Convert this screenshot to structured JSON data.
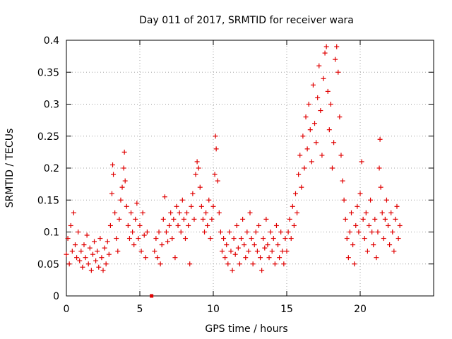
{
  "chart_data": {
    "type": "scatter",
    "title": "Day 011 of 2017, SRMTID for receiver wara",
    "xlabel": "GPS time / hours",
    "ylabel": "SRMTID / TECUs",
    "xlim": [
      0,
      25
    ],
    "ylim": [
      0,
      0.4
    ],
    "x_ticks": [
      "0",
      "5",
      "10",
      "15",
      "20"
    ],
    "y_ticks": [
      "0",
      "0.05",
      "0.1",
      "0.15",
      "0.2",
      "0.25",
      "0.3",
      "0.35",
      "0.4"
    ],
    "grid": true,
    "marker": "plus",
    "color": "#e00000",
    "series": [
      {
        "name": "SRMTID",
        "points": [
          [
            0.0,
            0.065
          ],
          [
            0.1,
            0.09
          ],
          [
            0.2,
            0.05
          ],
          [
            0.3,
            0.11
          ],
          [
            0.4,
            0.07
          ],
          [
            0.5,
            0.13
          ],
          [
            0.6,
            0.08
          ],
          [
            0.7,
            0.06
          ],
          [
            0.8,
            0.1
          ],
          [
            0.9,
            0.055
          ],
          [
            1.0,
            0.07
          ],
          [
            1.1,
            0.045
          ],
          [
            1.2,
            0.08
          ],
          [
            1.3,
            0.06
          ],
          [
            1.4,
            0.095
          ],
          [
            1.5,
            0.05
          ],
          [
            1.6,
            0.075
          ],
          [
            1.7,
            0.04
          ],
          [
            1.8,
            0.065
          ],
          [
            1.9,
            0.085
          ],
          [
            2.0,
            0.055
          ],
          [
            2.1,
            0.07
          ],
          [
            2.2,
            0.045
          ],
          [
            2.3,
            0.09
          ],
          [
            2.4,
            0.06
          ],
          [
            2.5,
            0.04
          ],
          [
            2.6,
            0.075
          ],
          [
            2.7,
            0.05
          ],
          [
            2.8,
            0.085
          ],
          [
            2.9,
            0.065
          ],
          [
            3.0,
            0.11
          ],
          [
            3.1,
            0.16
          ],
          [
            3.15,
            0.205
          ],
          [
            3.2,
            0.19
          ],
          [
            3.3,
            0.13
          ],
          [
            3.4,
            0.09
          ],
          [
            3.5,
            0.07
          ],
          [
            3.6,
            0.12
          ],
          [
            3.7,
            0.15
          ],
          [
            3.8,
            0.17
          ],
          [
            3.9,
            0.2
          ],
          [
            3.95,
            0.225
          ],
          [
            4.0,
            0.18
          ],
          [
            4.1,
            0.14
          ],
          [
            4.2,
            0.11
          ],
          [
            4.3,
            0.09
          ],
          [
            4.4,
            0.13
          ],
          [
            4.5,
            0.1
          ],
          [
            4.6,
            0.08
          ],
          [
            4.7,
            0.12
          ],
          [
            4.8,
            0.145
          ],
          [
            4.9,
            0.09
          ],
          [
            5.0,
            0.11
          ],
          [
            5.1,
            0.07
          ],
          [
            5.2,
            0.13
          ],
          [
            5.3,
            0.095
          ],
          [
            5.4,
            0.06
          ],
          [
            5.5,
            0.1
          ],
          [
            5.8,
            0.0
          ],
          [
            6.0,
            0.07
          ],
          [
            6.1,
            0.09
          ],
          [
            6.2,
            0.06
          ],
          [
            6.3,
            0.1
          ],
          [
            6.4,
            0.05
          ],
          [
            6.5,
            0.08
          ],
          [
            6.6,
            0.12
          ],
          [
            6.7,
            0.155
          ],
          [
            6.8,
            0.1
          ],
          [
            6.9,
            0.085
          ],
          [
            7.0,
            0.11
          ],
          [
            7.1,
            0.13
          ],
          [
            7.2,
            0.09
          ],
          [
            7.3,
            0.12
          ],
          [
            7.4,
            0.06
          ],
          [
            7.5,
            0.14
          ],
          [
            7.6,
            0.11
          ],
          [
            7.7,
            0.13
          ],
          [
            7.8,
            0.1
          ],
          [
            7.9,
            0.15
          ],
          [
            8.0,
            0.12
          ],
          [
            8.1,
            0.09
          ],
          [
            8.2,
            0.13
          ],
          [
            8.3,
            0.11
          ],
          [
            8.4,
            0.05
          ],
          [
            8.5,
            0.14
          ],
          [
            8.6,
            0.16
          ],
          [
            8.7,
            0.12
          ],
          [
            8.8,
            0.19
          ],
          [
            8.9,
            0.21
          ],
          [
            9.0,
            0.2
          ],
          [
            9.1,
            0.17
          ],
          [
            9.2,
            0.14
          ],
          [
            9.3,
            0.12
          ],
          [
            9.4,
            0.1
          ],
          [
            9.5,
            0.13
          ],
          [
            9.6,
            0.11
          ],
          [
            9.7,
            0.15
          ],
          [
            9.8,
            0.09
          ],
          [
            9.9,
            0.12
          ],
          [
            10.0,
            0.14
          ],
          [
            10.1,
            0.19
          ],
          [
            10.15,
            0.25
          ],
          [
            10.2,
            0.23
          ],
          [
            10.3,
            0.18
          ],
          [
            10.4,
            0.13
          ],
          [
            10.5,
            0.1
          ],
          [
            10.6,
            0.07
          ],
          [
            10.7,
            0.09
          ],
          [
            10.8,
            0.06
          ],
          [
            10.9,
            0.08
          ],
          [
            11.0,
            0.05
          ],
          [
            11.1,
            0.1
          ],
          [
            11.2,
            0.07
          ],
          [
            11.3,
            0.04
          ],
          [
            11.4,
            0.09
          ],
          [
            11.5,
            0.065
          ],
          [
            11.6,
            0.11
          ],
          [
            11.7,
            0.075
          ],
          [
            11.8,
            0.05
          ],
          [
            11.9,
            0.09
          ],
          [
            12.0,
            0.12
          ],
          [
            12.1,
            0.08
          ],
          [
            12.2,
            0.06
          ],
          [
            12.3,
            0.1
          ],
          [
            12.4,
            0.07
          ],
          [
            12.5,
            0.13
          ],
          [
            12.6,
            0.09
          ],
          [
            12.7,
            0.05
          ],
          [
            12.8,
            0.08
          ],
          [
            12.9,
            0.1
          ],
          [
            13.0,
            0.07
          ],
          [
            13.1,
            0.11
          ],
          [
            13.2,
            0.06
          ],
          [
            13.3,
            0.04
          ],
          [
            13.4,
            0.09
          ],
          [
            13.5,
            0.075
          ],
          [
            13.6,
            0.12
          ],
          [
            13.7,
            0.08
          ],
          [
            13.8,
            0.06
          ],
          [
            13.9,
            0.1
          ],
          [
            14.0,
            0.07
          ],
          [
            14.1,
            0.09
          ],
          [
            14.2,
            0.05
          ],
          [
            14.3,
            0.11
          ],
          [
            14.4,
            0.08
          ],
          [
            14.5,
            0.06
          ],
          [
            14.6,
            0.1
          ],
          [
            14.7,
            0.07
          ],
          [
            14.8,
            0.05
          ],
          [
            14.9,
            0.09
          ],
          [
            15.0,
            0.07
          ],
          [
            15.1,
            0.1
          ],
          [
            15.2,
            0.12
          ],
          [
            15.3,
            0.09
          ],
          [
            15.4,
            0.14
          ],
          [
            15.5,
            0.11
          ],
          [
            15.6,
            0.16
          ],
          [
            15.7,
            0.13
          ],
          [
            15.8,
            0.19
          ],
          [
            15.9,
            0.22
          ],
          [
            16.0,
            0.17
          ],
          [
            16.1,
            0.25
          ],
          [
            16.2,
            0.2
          ],
          [
            16.3,
            0.28
          ],
          [
            16.4,
            0.23
          ],
          [
            16.5,
            0.3
          ],
          [
            16.6,
            0.26
          ],
          [
            16.7,
            0.21
          ],
          [
            16.8,
            0.33
          ],
          [
            16.9,
            0.27
          ],
          [
            17.0,
            0.24
          ],
          [
            17.1,
            0.31
          ],
          [
            17.2,
            0.36
          ],
          [
            17.3,
            0.29
          ],
          [
            17.4,
            0.22
          ],
          [
            17.5,
            0.34
          ],
          [
            17.6,
            0.38
          ],
          [
            17.7,
            0.39
          ],
          [
            17.8,
            0.32
          ],
          [
            17.9,
            0.26
          ],
          [
            18.0,
            0.3
          ],
          [
            18.1,
            0.2
          ],
          [
            18.2,
            0.24
          ],
          [
            18.3,
            0.37
          ],
          [
            18.4,
            0.39
          ],
          [
            18.5,
            0.35
          ],
          [
            18.6,
            0.28
          ],
          [
            18.7,
            0.22
          ],
          [
            18.8,
            0.18
          ],
          [
            18.9,
            0.15
          ],
          [
            19.0,
            0.12
          ],
          [
            19.1,
            0.09
          ],
          [
            19.2,
            0.06
          ],
          [
            19.3,
            0.1
          ],
          [
            19.4,
            0.13
          ],
          [
            19.5,
            0.08
          ],
          [
            19.6,
            0.05
          ],
          [
            19.7,
            0.11
          ],
          [
            19.8,
            0.14
          ],
          [
            19.9,
            0.1
          ],
          [
            20.0,
            0.16
          ],
          [
            20.1,
            0.21
          ],
          [
            20.2,
            0.12
          ],
          [
            20.3,
            0.09
          ],
          [
            20.4,
            0.13
          ],
          [
            20.5,
            0.07
          ],
          [
            20.6,
            0.11
          ],
          [
            20.7,
            0.15
          ],
          [
            20.8,
            0.1
          ],
          [
            20.9,
            0.08
          ],
          [
            21.0,
            0.12
          ],
          [
            21.1,
            0.06
          ],
          [
            21.2,
            0.1
          ],
          [
            21.3,
            0.2
          ],
          [
            21.35,
            0.245
          ],
          [
            21.4,
            0.17
          ],
          [
            21.5,
            0.13
          ],
          [
            21.6,
            0.09
          ],
          [
            21.7,
            0.12
          ],
          [
            21.8,
            0.15
          ],
          [
            21.9,
            0.11
          ],
          [
            22.0,
            0.08
          ],
          [
            22.1,
            0.13
          ],
          [
            22.2,
            0.1
          ],
          [
            22.3,
            0.07
          ],
          [
            22.4,
            0.12
          ],
          [
            22.5,
            0.14
          ],
          [
            22.6,
            0.09
          ],
          [
            22.7,
            0.11
          ]
        ]
      }
    ]
  }
}
